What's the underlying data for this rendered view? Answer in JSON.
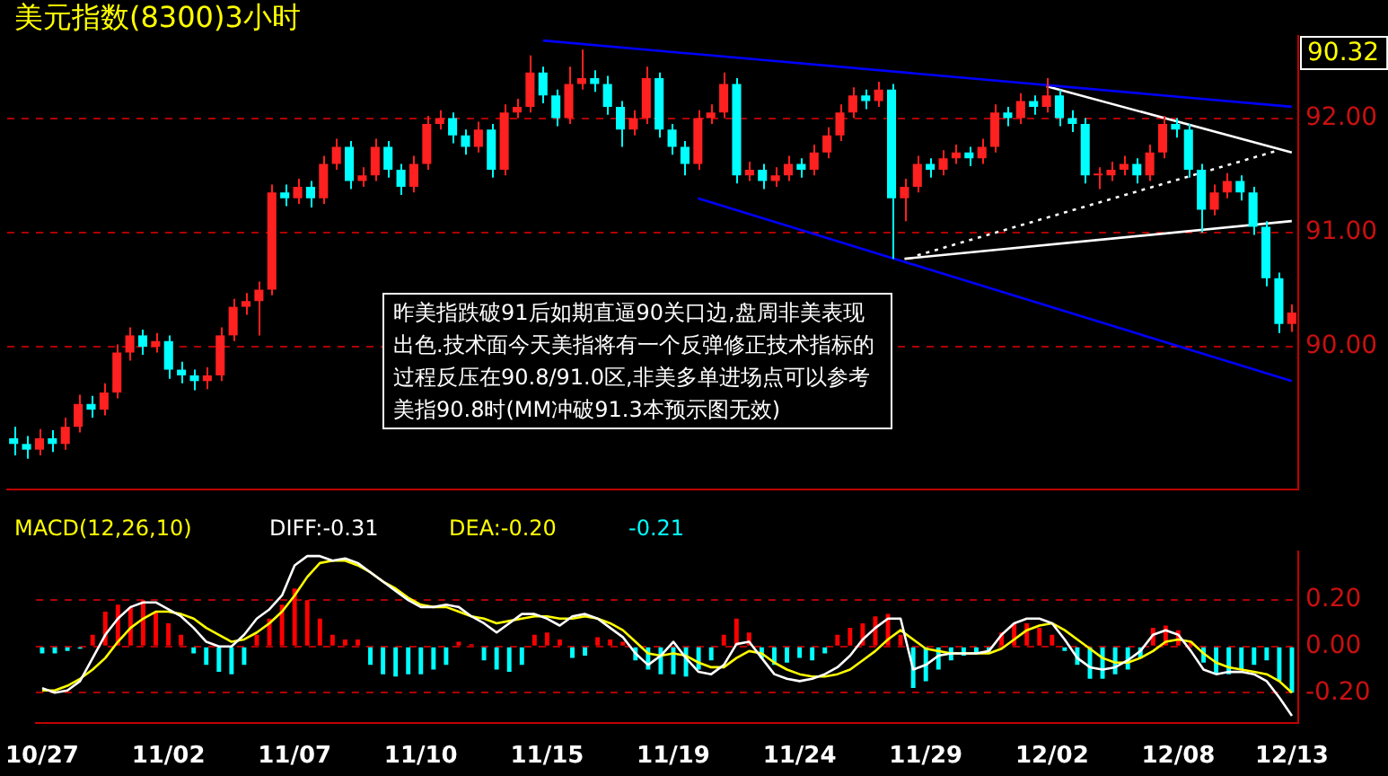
{
  "chart_data": [
    {
      "type": "candlestick",
      "title": "美元指数(8300)3小时",
      "categories": [
        null,
        null,
        null,
        null,
        null,
        null,
        null,
        null,
        null,
        null,
        null,
        null,
        null,
        null,
        null,
        null,
        null,
        null,
        null,
        null,
        null,
        null,
        null,
        null,
        null,
        null,
        null,
        null,
        null,
        null,
        null,
        null,
        null,
        null,
        null,
        null,
        null,
        null,
        null,
        null,
        null,
        null,
        null,
        null,
        null,
        null,
        null,
        null,
        null,
        null,
        null,
        null,
        null,
        null,
        null,
        null,
        null,
        null,
        null,
        null,
        null,
        null,
        null,
        null,
        null,
        null,
        null,
        null,
        null,
        null,
        null,
        null,
        null,
        null,
        null,
        null,
        null,
        null,
        null,
        null,
        null,
        null,
        null,
        null,
        null,
        null,
        null,
        null,
        null,
        null,
        null,
        null,
        null,
        null,
        null,
        null,
        null,
        null,
        null,
        null
      ],
      "ohlc": [
        [
          89.2,
          89.3,
          89.05,
          89.15
        ],
        [
          89.15,
          89.22,
          89.02,
          89.1
        ],
        [
          89.1,
          89.28,
          89.05,
          89.2
        ],
        [
          89.2,
          89.27,
          89.08,
          89.15
        ],
        [
          89.15,
          89.38,
          89.1,
          89.3
        ],
        [
          89.3,
          89.58,
          89.25,
          89.5
        ],
        [
          89.5,
          89.57,
          89.38,
          89.45
        ],
        [
          89.45,
          89.68,
          89.4,
          89.6
        ],
        [
          89.6,
          90.02,
          89.55,
          89.95
        ],
        [
          89.95,
          90.17,
          89.88,
          90.1
        ],
        [
          90.1,
          90.15,
          89.93,
          90.0
        ],
        [
          90.0,
          90.12,
          89.95,
          90.05
        ],
        [
          90.05,
          90.1,
          89.72,
          89.8
        ],
        [
          89.8,
          89.87,
          89.68,
          89.75
        ],
        [
          89.75,
          89.8,
          89.62,
          89.7
        ],
        [
          89.7,
          89.82,
          89.63,
          89.75
        ],
        [
          89.75,
          90.17,
          89.7,
          90.1
        ],
        [
          90.1,
          90.42,
          90.05,
          90.35
        ],
        [
          90.35,
          90.47,
          90.28,
          90.4
        ],
        [
          90.4,
          90.57,
          90.1,
          90.5
        ],
        [
          90.5,
          91.42,
          90.45,
          91.35
        ],
        [
          91.35,
          91.42,
          91.23,
          91.3
        ],
        [
          91.3,
          91.47,
          91.25,
          91.4
        ],
        [
          91.4,
          91.45,
          91.22,
          91.3
        ],
        [
          91.3,
          91.67,
          91.25,
          91.6
        ],
        [
          91.6,
          91.82,
          91.55,
          91.75
        ],
        [
          91.75,
          91.8,
          91.38,
          91.45
        ],
        [
          91.45,
          91.57,
          91.4,
          91.5
        ],
        [
          91.5,
          91.82,
          91.45,
          91.75
        ],
        [
          91.75,
          91.8,
          91.48,
          91.55
        ],
        [
          91.55,
          91.6,
          91.33,
          91.4
        ],
        [
          91.4,
          91.67,
          91.35,
          91.6
        ],
        [
          91.6,
          92.02,
          91.55,
          91.95
        ],
        [
          91.95,
          92.07,
          91.9,
          92.0
        ],
        [
          92.0,
          92.05,
          91.78,
          91.85
        ],
        [
          91.85,
          91.9,
          91.68,
          91.75
        ],
        [
          91.75,
          91.97,
          91.7,
          91.9
        ],
        [
          91.9,
          91.95,
          91.48,
          91.55
        ],
        [
          91.55,
          92.12,
          91.5,
          92.05
        ],
        [
          92.05,
          92.17,
          92.0,
          92.1
        ],
        [
          92.1,
          92.55,
          92.05,
          92.4
        ],
        [
          92.4,
          92.45,
          92.13,
          92.2
        ],
        [
          92.2,
          92.25,
          91.93,
          92.0
        ],
        [
          92.0,
          92.45,
          91.95,
          92.3
        ],
        [
          92.3,
          92.6,
          92.25,
          92.35
        ],
        [
          92.35,
          92.42,
          92.23,
          92.3
        ],
        [
          92.3,
          92.37,
          92.03,
          92.1
        ],
        [
          92.1,
          92.15,
          91.75,
          91.9
        ],
        [
          91.9,
          92.07,
          91.85,
          92.0
        ],
        [
          92.0,
          92.45,
          91.95,
          92.35
        ],
        [
          92.35,
          92.4,
          91.83,
          91.9
        ],
        [
          91.9,
          91.95,
          91.68,
          91.75
        ],
        [
          91.75,
          91.8,
          91.5,
          91.6
        ],
        [
          91.6,
          92.07,
          91.55,
          92.0
        ],
        [
          92.0,
          92.12,
          91.95,
          92.05
        ],
        [
          92.05,
          92.4,
          92.0,
          92.3
        ],
        [
          92.3,
          92.35,
          91.43,
          91.5
        ],
        [
          91.5,
          91.62,
          91.45,
          91.55
        ],
        [
          91.55,
          91.6,
          91.38,
          91.45
        ],
        [
          91.45,
          91.57,
          91.4,
          91.5
        ],
        [
          91.5,
          91.67,
          91.45,
          91.6
        ],
        [
          91.6,
          91.65,
          91.48,
          91.55
        ],
        [
          91.55,
          91.77,
          91.5,
          91.7
        ],
        [
          91.7,
          91.92,
          91.65,
          91.85
        ],
        [
          91.85,
          92.12,
          91.8,
          92.05
        ],
        [
          92.05,
          92.27,
          92.0,
          92.2
        ],
        [
          92.2,
          92.25,
          92.08,
          92.15
        ],
        [
          92.15,
          92.32,
          92.1,
          92.25
        ],
        [
          92.25,
          92.3,
          90.77,
          91.3
        ],
        [
          91.3,
          91.47,
          91.1,
          91.4
        ],
        [
          91.4,
          91.67,
          91.35,
          91.6
        ],
        [
          91.6,
          91.65,
          91.48,
          91.55
        ],
        [
          91.55,
          91.72,
          91.5,
          91.65
        ],
        [
          91.65,
          91.77,
          91.6,
          91.7
        ],
        [
          91.7,
          91.75,
          91.58,
          91.65
        ],
        [
          91.65,
          91.82,
          91.6,
          91.75
        ],
        [
          91.75,
          92.12,
          91.7,
          92.05
        ],
        [
          92.05,
          92.1,
          91.93,
          92.0
        ],
        [
          92.0,
          92.22,
          91.95,
          92.15
        ],
        [
          92.15,
          92.2,
          92.03,
          92.1
        ],
        [
          92.1,
          92.35,
          92.05,
          92.2
        ],
        [
          92.2,
          92.25,
          91.93,
          92.0
        ],
        [
          92.0,
          92.07,
          91.88,
          91.95
        ],
        [
          91.95,
          92.0,
          91.43,
          91.5
        ],
        [
          91.5,
          91.57,
          91.38,
          91.5
        ],
        [
          91.5,
          91.62,
          91.45,
          91.55
        ],
        [
          91.55,
          91.67,
          91.5,
          91.6
        ],
        [
          91.6,
          91.65,
          91.43,
          91.5
        ],
        [
          91.5,
          91.77,
          91.45,
          91.7
        ],
        [
          91.7,
          92.02,
          91.65,
          91.95
        ],
        [
          91.95,
          92.0,
          91.83,
          91.9
        ],
        [
          91.9,
          91.95,
          91.48,
          91.55
        ],
        [
          91.55,
          91.6,
          91.0,
          91.2
        ],
        [
          91.2,
          91.42,
          91.15,
          91.35
        ],
        [
          91.35,
          91.52,
          91.3,
          91.45
        ],
        [
          91.45,
          91.5,
          91.28,
          91.35
        ],
        [
          91.35,
          91.4,
          90.98,
          91.05
        ],
        [
          91.05,
          91.1,
          90.53,
          90.6
        ],
        [
          90.6,
          90.65,
          90.12,
          90.2
        ],
        [
          90.2,
          90.37,
          90.13,
          90.3
        ]
      ],
      "series": [
        {
          "type": "line",
          "color": "#0000ff",
          "values": [
            null,
            null,
            null,
            null,
            null,
            null,
            null,
            null,
            null,
            null,
            null,
            null,
            null,
            null,
            null,
            null,
            null,
            null,
            null,
            null,
            null,
            null,
            null,
            null,
            null,
            null,
            null,
            null,
            null,
            null,
            null,
            null,
            null,
            null,
            null,
            null,
            null,
            null,
            null,
            null,
            null,
            92.68,
            null,
            null,
            null,
            null,
            null,
            null,
            null,
            null,
            null,
            null,
            null,
            null,
            null,
            null,
            null,
            null,
            null,
            null,
            null,
            null,
            null,
            null,
            null,
            null,
            null,
            null,
            null,
            null,
            null,
            null,
            null,
            null,
            null,
            null,
            null,
            null,
            null,
            null,
            null,
            null,
            null,
            null,
            null,
            null,
            null,
            null,
            null,
            null,
            null,
            null,
            null,
            null,
            null,
            null,
            null,
            null,
            null,
            92.1
          ]
        },
        {
          "type": "line",
          "color": "#0000ff",
          "values": [
            null,
            null,
            null,
            null,
            null,
            null,
            null,
            null,
            null,
            null,
            null,
            null,
            null,
            null,
            null,
            null,
            null,
            null,
            null,
            null,
            null,
            null,
            null,
            null,
            null,
            null,
            null,
            null,
            null,
            null,
            null,
            null,
            null,
            null,
            null,
            null,
            null,
            null,
            null,
            null,
            null,
            null,
            null,
            null,
            null,
            null,
            null,
            null,
            null,
            null,
            null,
            null,
            null,
            91.3,
            null,
            null,
            null,
            null,
            null,
            null,
            null,
            null,
            null,
            null,
            null,
            null,
            null,
            null,
            null,
            null,
            null,
            null,
            null,
            null,
            null,
            null,
            null,
            null,
            null,
            null,
            null,
            null,
            null,
            null,
            null,
            null,
            null,
            null,
            null,
            null,
            null,
            null,
            null,
            null,
            null,
            null,
            null,
            null,
            null,
            89.7
          ]
        },
        {
          "type": "line",
          "color": "#ffffff",
          "values": [
            null,
            null,
            null,
            null,
            null,
            null,
            null,
            null,
            null,
            null,
            null,
            null,
            null,
            null,
            null,
            null,
            null,
            null,
            null,
            null,
            null,
            null,
            null,
            null,
            null,
            null,
            null,
            null,
            null,
            null,
            null,
            null,
            null,
            null,
            null,
            null,
            null,
            null,
            null,
            null,
            null,
            null,
            null,
            null,
            null,
            null,
            null,
            null,
            null,
            null,
            null,
            null,
            null,
            null,
            null,
            null,
            null,
            null,
            null,
            null,
            null,
            null,
            null,
            null,
            null,
            null,
            null,
            null,
            null,
            null,
            null,
            null,
            null,
            null,
            null,
            null,
            null,
            null,
            null,
            null,
            92.28,
            null,
            null,
            null,
            null,
            null,
            null,
            null,
            null,
            null,
            null,
            null,
            null,
            null,
            null,
            null,
            null,
            null,
            null,
            91.7
          ]
        },
        {
          "type": "line",
          "color": "#ffffff",
          "values": [
            null,
            null,
            null,
            null,
            null,
            null,
            null,
            null,
            null,
            null,
            null,
            null,
            null,
            null,
            null,
            null,
            null,
            null,
            null,
            null,
            null,
            null,
            null,
            null,
            null,
            null,
            null,
            null,
            null,
            null,
            null,
            null,
            null,
            null,
            null,
            null,
            null,
            null,
            null,
            null,
            null,
            null,
            null,
            null,
            null,
            null,
            null,
            null,
            null,
            null,
            null,
            null,
            null,
            null,
            null,
            null,
            null,
            null,
            null,
            null,
            null,
            null,
            null,
            null,
            null,
            null,
            null,
            null,
            null,
            90.77,
            null,
            null,
            null,
            null,
            null,
            null,
            null,
            null,
            null,
            null,
            null,
            null,
            null,
            null,
            null,
            null,
            null,
            null,
            null,
            null,
            null,
            null,
            null,
            null,
            null,
            null,
            null,
            null,
            null,
            91.1
          ]
        },
        {
          "type": "line",
          "color": "#ffffff",
          "line_style": "dotted",
          "values": [
            null,
            null,
            null,
            null,
            null,
            null,
            null,
            null,
            null,
            null,
            null,
            null,
            null,
            null,
            null,
            null,
            null,
            null,
            null,
            null,
            null,
            null,
            null,
            null,
            null,
            null,
            null,
            null,
            null,
            null,
            null,
            null,
            null,
            null,
            null,
            null,
            null,
            null,
            null,
            null,
            null,
            null,
            null,
            null,
            null,
            null,
            null,
            null,
            null,
            null,
            null,
            null,
            null,
            null,
            null,
            null,
            null,
            null,
            null,
            null,
            null,
            null,
            null,
            null,
            null,
            null,
            null,
            null,
            null,
            null,
            90.8,
            null,
            null,
            null,
            null,
            null,
            null,
            null,
            null,
            null,
            null,
            null,
            null,
            null,
            null,
            null,
            null,
            null,
            null,
            null,
            null,
            null,
            null,
            null,
            null,
            null,
            null,
            null,
            91.72,
            null
          ]
        }
      ],
      "ylim": [
        88.75,
        92.72
      ],
      "yticks": [
        {
          "value": 90,
          "label": "90.00"
        },
        {
          "value": 91,
          "label": "91.00"
        },
        {
          "value": 92,
          "label": "92.00"
        }
      ],
      "grid": "y",
      "marker": "none",
      "annotations": [
        "90.32",
        "昨美指跌破91后如期直逼90关口边,盘周非美表现出色.技术面今天美指将有一个反弹修正技术指标的过程反压在90.8/91.0区,非美多单进场点可以参考美指90.8时(MM冲破91.3本预示图无效)"
      ]
    },
    {
      "type": "bar",
      "title": "MACD(12,26,10)",
      "categories": [
        "10/27",
        null,
        null,
        null,
        null,
        null,
        null,
        null,
        null,
        null,
        "11/02",
        null,
        null,
        null,
        null,
        null,
        null,
        null,
        null,
        null,
        "11/07",
        null,
        null,
        null,
        null,
        null,
        null,
        null,
        null,
        null,
        "11/10",
        null,
        null,
        null,
        null,
        null,
        null,
        null,
        null,
        null,
        "11/15",
        null,
        null,
        null,
        null,
        null,
        null,
        null,
        null,
        null,
        "11/19",
        null,
        null,
        null,
        null,
        null,
        null,
        null,
        null,
        null,
        "11/24",
        null,
        null,
        null,
        null,
        null,
        null,
        null,
        null,
        null,
        "11/29",
        null,
        null,
        null,
        null,
        null,
        null,
        null,
        null,
        null,
        "12/02",
        null,
        null,
        null,
        null,
        null,
        null,
        null,
        null,
        null,
        "12/08",
        null,
        null,
        null,
        null,
        null,
        null,
        null,
        null,
        "12/13"
      ],
      "series": [
        {
          "type": "line",
          "name": "DIFF:-0.31",
          "color": "#ffffff",
          "values": [
            -0.18,
            -0.2,
            -0.19,
            -0.15,
            -0.05,
            0.05,
            0.12,
            0.17,
            0.19,
            0.19,
            0.16,
            0.13,
            0.08,
            0.02,
            0.0,
            0.0,
            0.05,
            0.12,
            0.16,
            0.22,
            0.35,
            0.39,
            0.39,
            0.37,
            0.38,
            0.36,
            0.32,
            0.28,
            0.24,
            0.2,
            0.17,
            0.17,
            0.18,
            0.17,
            0.13,
            0.1,
            0.06,
            0.1,
            0.14,
            0.14,
            0.12,
            0.09,
            0.13,
            0.14,
            0.12,
            0.08,
            0.04,
            -0.03,
            -0.08,
            -0.04,
            0.02,
            -0.05,
            -0.11,
            -0.12,
            -0.08,
            0.01,
            0.02,
            -0.05,
            -0.12,
            -0.14,
            -0.15,
            -0.14,
            -0.12,
            -0.09,
            -0.04,
            0.03,
            0.08,
            0.12,
            0.12,
            -0.1,
            -0.08,
            -0.04,
            -0.03,
            -0.03,
            -0.03,
            -0.02,
            0.05,
            0.1,
            0.12,
            0.12,
            0.1,
            0.03,
            -0.05,
            -0.09,
            -0.1,
            -0.09,
            -0.06,
            -0.02,
            0.05,
            0.07,
            0.05,
            -0.02,
            -0.1,
            -0.12,
            -0.11,
            -0.11,
            -0.12,
            -0.15,
            -0.22,
            -0.3
          ]
        },
        {
          "type": "line",
          "name": "DEA:-0.20",
          "color": "#ffff00",
          "values": [
            -0.19,
            -0.19,
            -0.17,
            -0.14,
            -0.1,
            -0.05,
            0.02,
            0.08,
            0.12,
            0.15,
            0.15,
            0.14,
            0.12,
            0.08,
            0.05,
            0.02,
            0.03,
            0.06,
            0.1,
            0.15,
            0.22,
            0.3,
            0.36,
            0.37,
            0.37,
            0.35,
            0.32,
            0.28,
            0.25,
            0.21,
            0.18,
            0.17,
            0.17,
            0.15,
            0.13,
            0.12,
            0.1,
            0.11,
            0.12,
            0.13,
            0.13,
            0.12,
            0.12,
            0.13,
            0.12,
            0.1,
            0.07,
            0.02,
            -0.03,
            -0.04,
            -0.03,
            -0.04,
            -0.07,
            -0.09,
            -0.09,
            -0.05,
            -0.02,
            -0.03,
            -0.07,
            -0.1,
            -0.12,
            -0.13,
            -0.13,
            -0.12,
            -0.1,
            -0.06,
            -0.02,
            0.03,
            0.07,
            0.03,
            -0.01,
            -0.02,
            -0.03,
            -0.03,
            -0.03,
            -0.03,
            -0.01,
            0.03,
            0.07,
            0.09,
            0.1,
            0.07,
            0.03,
            -0.01,
            -0.05,
            -0.07,
            -0.07,
            -0.05,
            -0.02,
            0.02,
            0.03,
            0.02,
            -0.03,
            -0.07,
            -0.09,
            -0.1,
            -0.11,
            -0.12,
            -0.15,
            -0.2
          ]
        },
        {
          "type": "bar",
          "name": "-0.21",
          "color": "#00ffff",
          "values": [
            -0.03,
            -0.03,
            -0.02,
            -0.01,
            0.05,
            0.15,
            0.18,
            0.17,
            0.2,
            0.15,
            0.1,
            0.05,
            -0.03,
            -0.08,
            -0.11,
            -0.12,
            -0.08,
            0.05,
            0.12,
            0.18,
            0.25,
            0.2,
            0.12,
            0.05,
            0.03,
            0.03,
            -0.08,
            -0.12,
            -0.13,
            -0.12,
            -0.12,
            -0.1,
            -0.08,
            0.02,
            0.01,
            -0.06,
            -0.1,
            -0.11,
            -0.08,
            0.05,
            0.06,
            0.03,
            -0.05,
            -0.04,
            0.04,
            0.03,
            0.02,
            -0.06,
            -0.1,
            -0.12,
            -0.12,
            -0.13,
            -0.1,
            -0.06,
            0.05,
            0.12,
            0.06,
            -0.05,
            -0.08,
            -0.07,
            -0.05,
            -0.06,
            -0.03,
            0.05,
            0.08,
            0.1,
            0.13,
            0.14,
            0.05,
            -0.18,
            -0.15,
            -0.1,
            -0.06,
            -0.04,
            -0.03,
            -0.02,
            0.06,
            0.1,
            0.1,
            0.08,
            0.05,
            -0.02,
            -0.08,
            -0.14,
            -0.14,
            -0.12,
            -0.1,
            -0.05,
            0.08,
            0.09,
            0.07,
            0.02,
            -0.07,
            -0.12,
            -0.12,
            -0.1,
            -0.08,
            -0.06,
            -0.15,
            -0.2
          ],
          "colors": [
            "#00ffff",
            "#00ffff",
            "#00ffff",
            "#00ffff",
            "#ff0000",
            "#ff0000",
            "#ff0000",
            "#ff0000",
            "#ff0000",
            "#ff0000",
            "#ff0000",
            "#ff0000",
            "#00ffff",
            "#00ffff",
            "#00ffff",
            "#00ffff",
            "#00ffff",
            "#ff0000",
            "#ff0000",
            "#ff0000",
            "#ff0000",
            "#ff0000",
            "#ff0000",
            "#ff0000",
            "#ff0000",
            "#ff0000",
            "#00ffff",
            "#00ffff",
            "#00ffff",
            "#00ffff",
            "#00ffff",
            "#00ffff",
            "#00ffff",
            "#ff0000",
            "#ff0000",
            "#00ffff",
            "#00ffff",
            "#00ffff",
            "#00ffff",
            "#ff0000",
            "#ff0000",
            "#ff0000",
            "#00ffff",
            "#00ffff",
            "#ff0000",
            "#ff0000",
            "#ff0000",
            "#00ffff",
            "#00ffff",
            "#00ffff",
            "#00ffff",
            "#00ffff",
            "#00ffff",
            "#00ffff",
            "#ff0000",
            "#ff0000",
            "#ff0000",
            "#00ffff",
            "#00ffff",
            "#00ffff",
            "#00ffff",
            "#00ffff",
            "#00ffff",
            "#ff0000",
            "#ff0000",
            "#ff0000",
            "#ff0000",
            "#ff0000",
            "#ff0000",
            "#00ffff",
            "#00ffff",
            "#00ffff",
            "#00ffff",
            "#00ffff",
            "#00ffff",
            "#00ffff",
            "#ff0000",
            "#ff0000",
            "#ff0000",
            "#ff0000",
            "#ff0000",
            "#00ffff",
            "#00ffff",
            "#00ffff",
            "#00ffff",
            "#00ffff",
            "#00ffff",
            "#00ffff",
            "#ff0000",
            "#ff0000",
            "#ff0000",
            "#ff0000",
            "#00ffff",
            "#00ffff",
            "#00ffff",
            "#00ffff",
            "#00ffff",
            "#00ffff",
            "#00ffff",
            "#00ffff"
          ]
        }
      ],
      "ylim": [
        -0.33,
        0.41
      ],
      "yticks": [
        {
          "value": -0.2,
          "label": "-0.20"
        },
        {
          "value": 0,
          "label": "0.00"
        },
        {
          "value": 0.2,
          "label": "0.20"
        }
      ],
      "grid": "y",
      "legend": "top left",
      "marker": "none"
    }
  ]
}
